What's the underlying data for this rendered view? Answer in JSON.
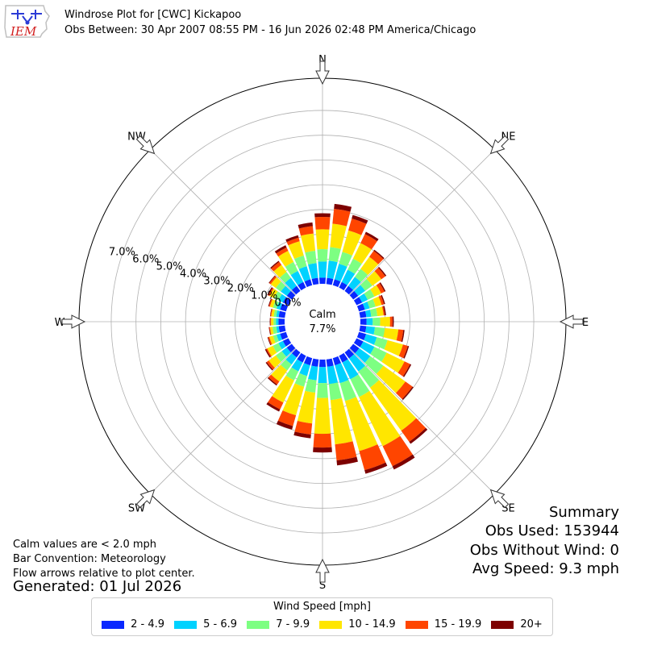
{
  "header": {
    "logo_text": "IEM",
    "title": "Windrose Plot for [CWC] Kickapoo",
    "subtitle": "Obs Between: 30 Apr 2007 08:55 PM - 16 Jun 2026 02:48 PM America/Chicago"
  },
  "notes": {
    "calm_note": "Calm values are < 2.0 mph",
    "bar_convention": "Bar Convention: Meteorology",
    "flow_arrows": "Flow arrows relative to plot center.",
    "generated": "Generated: 01 Jul 2026"
  },
  "summary": {
    "title": "Summary",
    "obs_used": "Obs Used: 153944",
    "obs_without_wind": "Obs Without Wind: 0",
    "avg_speed": "Avg Speed: 9.3 mph"
  },
  "legend": {
    "title": "Wind Speed [mph]"
  },
  "chart_data": {
    "type": "windrose",
    "calm_label": "Calm",
    "calm_value": "7.7%",
    "radial_ticks": [
      "0.0%",
      "1.0%",
      "2.0%",
      "3.0%",
      "4.0%",
      "5.0%",
      "6.0%",
      "7.0%"
    ],
    "radial_max_percent": 8.3,
    "compass_labels": [
      "N",
      "NE",
      "E",
      "SE",
      "S",
      "SW",
      "W",
      "NW"
    ],
    "bins": [
      {
        "label": "2 - 4.9",
        "color": "#0a28ff"
      },
      {
        "label": "5 - 6.9",
        "color": "#00d2ff"
      },
      {
        "label": "7 - 9.9",
        "color": "#7dff82"
      },
      {
        "label": "10 - 14.9",
        "color": "#ffe600"
      },
      {
        "label": "15 - 19.9",
        "color": "#ff4500"
      },
      {
        "label": "20+",
        "color": "#7d0000"
      }
    ],
    "direction_step_deg": 10,
    "sectors": [
      {
        "dir": 0,
        "cum": [
          0.25,
          0.9,
          1.4,
          2.2,
          2.7,
          2.85
        ]
      },
      {
        "dir": 10,
        "cum": [
          0.25,
          0.95,
          1.5,
          2.45,
          3.05,
          3.25
        ]
      },
      {
        "dir": 20,
        "cum": [
          0.25,
          0.9,
          1.4,
          2.3,
          2.8,
          2.95
        ]
      },
      {
        "dir": 30,
        "cum": [
          0.25,
          0.8,
          1.3,
          2.0,
          2.4,
          2.5
        ]
      },
      {
        "dir": 40,
        "cum": [
          0.25,
          0.7,
          1.1,
          1.7,
          2.0,
          2.05
        ]
      },
      {
        "dir": 50,
        "cum": [
          0.25,
          0.6,
          0.95,
          1.4,
          1.6,
          1.65
        ]
      },
      {
        "dir": 60,
        "cum": [
          0.25,
          0.5,
          0.8,
          1.1,
          1.25,
          1.3
        ]
      },
      {
        "dir": 70,
        "cum": [
          0.25,
          0.45,
          0.7,
          0.95,
          1.05,
          1.1
        ]
      },
      {
        "dir": 80,
        "cum": [
          0.25,
          0.45,
          0.7,
          0.95,
          1.0,
          1.05
        ]
      },
      {
        "dir": 90,
        "cum": [
          0.25,
          0.5,
          0.8,
          1.2,
          1.3,
          1.35
        ]
      },
      {
        "dir": 100,
        "cum": [
          0.25,
          0.6,
          1.0,
          1.55,
          1.75,
          1.8
        ]
      },
      {
        "dir": 110,
        "cum": [
          0.3,
          0.75,
          1.2,
          1.85,
          2.05,
          2.1
        ]
      },
      {
        "dir": 120,
        "cum": [
          0.3,
          0.8,
          1.35,
          2.15,
          2.4,
          2.45
        ]
      },
      {
        "dir": 130,
        "cum": [
          0.3,
          0.85,
          1.5,
          2.6,
          2.95,
          3.0
        ]
      },
      {
        "dir": 140,
        "cum": [
          0.3,
          0.95,
          1.75,
          3.9,
          4.45,
          4.55
        ]
      },
      {
        "dir": 150,
        "cum": [
          0.3,
          1.05,
          1.85,
          4.05,
          4.95,
          5.1
        ]
      },
      {
        "dir": 160,
        "cum": [
          0.3,
          1.05,
          1.8,
          3.9,
          4.7,
          4.85
        ]
      },
      {
        "dir": 170,
        "cum": [
          0.3,
          1.0,
          1.65,
          3.45,
          4.1,
          4.3
        ]
      },
      {
        "dir": 180,
        "cum": [
          0.3,
          0.95,
          1.55,
          3.0,
          3.55,
          3.75
        ]
      },
      {
        "dir": 190,
        "cum": [
          0.3,
          0.85,
          1.35,
          2.6,
          3.05,
          3.2
        ]
      },
      {
        "dir": 200,
        "cum": [
          0.3,
          0.75,
          1.2,
          2.4,
          2.85,
          3.0
        ]
      },
      {
        "dir": 210,
        "cum": [
          0.3,
          0.7,
          1.1,
          2.1,
          2.4,
          2.5
        ]
      },
      {
        "dir": 220,
        "cum": [
          0.25,
          0.6,
          0.9,
          1.45,
          1.6,
          1.65
        ]
      },
      {
        "dir": 230,
        "cum": [
          0.25,
          0.5,
          0.8,
          1.15,
          1.25,
          1.3
        ]
      },
      {
        "dir": 240,
        "cum": [
          0.25,
          0.45,
          0.7,
          0.95,
          1.0,
          1.05
        ]
      },
      {
        "dir": 250,
        "cum": [
          0.25,
          0.4,
          0.55,
          0.7,
          0.75,
          0.78
        ]
      },
      {
        "dir": 260,
        "cum": [
          0.25,
          0.35,
          0.5,
          0.6,
          0.63,
          0.65
        ]
      },
      {
        "dir": 270,
        "cum": [
          0.25,
          0.35,
          0.45,
          0.55,
          0.58,
          0.6
        ]
      },
      {
        "dir": 280,
        "cum": [
          0.25,
          0.35,
          0.45,
          0.55,
          0.58,
          0.6
        ]
      },
      {
        "dir": 290,
        "cum": [
          0.25,
          0.4,
          0.55,
          0.68,
          0.72,
          0.75
        ]
      },
      {
        "dir": 300,
        "cum": [
          0.25,
          0.45,
          0.65,
          0.85,
          0.9,
          0.95
        ]
      },
      {
        "dir": 310,
        "cum": [
          0.25,
          0.55,
          0.8,
          1.05,
          1.12,
          1.15
        ]
      },
      {
        "dir": 320,
        "cum": [
          0.25,
          0.65,
          0.95,
          1.3,
          1.45,
          1.5
        ]
      },
      {
        "dir": 330,
        "cum": [
          0.25,
          0.75,
          1.15,
          1.65,
          1.8,
          1.9
        ]
      },
      {
        "dir": 340,
        "cum": [
          0.25,
          0.8,
          1.25,
          1.85,
          2.0,
          2.1
        ]
      },
      {
        "dir": 350,
        "cum": [
          0.25,
          0.85,
          1.35,
          2.05,
          2.35,
          2.5
        ]
      }
    ]
  }
}
